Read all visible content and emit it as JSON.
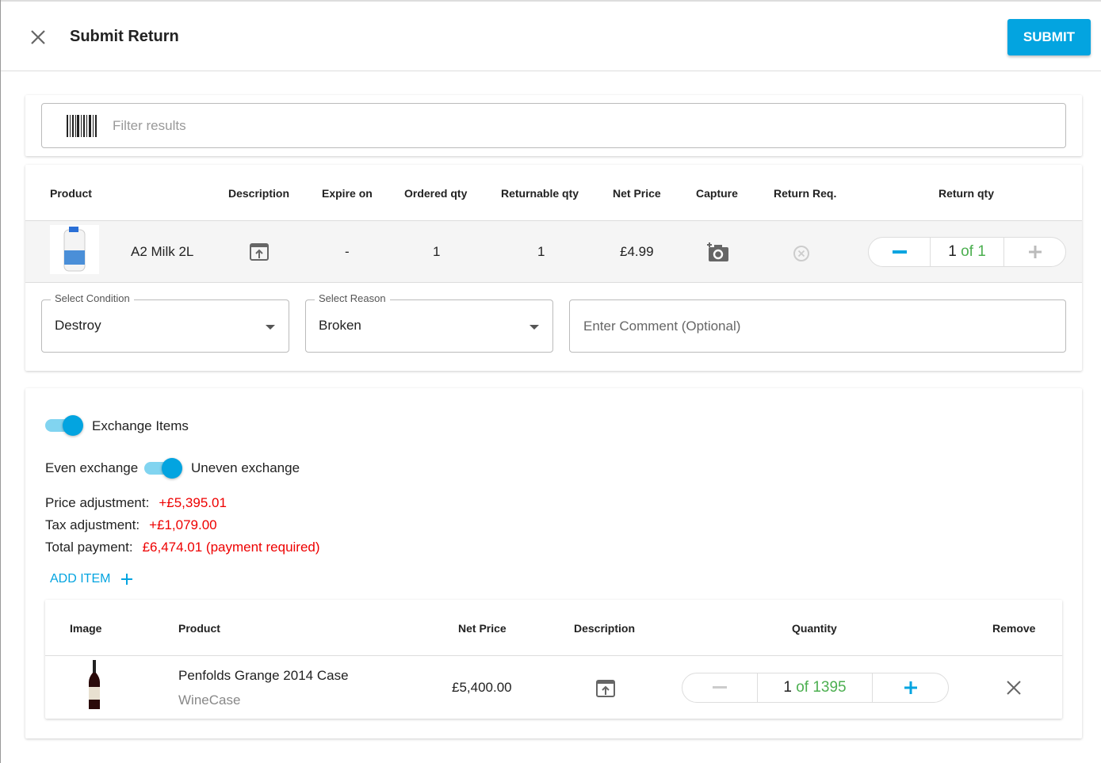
{
  "header": {
    "title": "Submit Return",
    "submit_label": "SUBMIT"
  },
  "filter": {
    "placeholder": "Filter results"
  },
  "return_table": {
    "columns": [
      "Product",
      "Description",
      "Expire on",
      "Ordered qty",
      "Returnable qty",
      "Net Price",
      "Capture",
      "Return Req.",
      "Return qty"
    ],
    "row": {
      "product": "A2 Milk 2L",
      "expire_on": "-",
      "ordered_qty": "1",
      "returnable_qty": "1",
      "net_price": "£4.99",
      "return_qty": "1",
      "return_qty_of": "of 1"
    }
  },
  "condition": {
    "label": "Select Condition",
    "value": "Destroy"
  },
  "reason": {
    "label": "Select Reason",
    "value": "Broken"
  },
  "comment": {
    "placeholder": "Enter Comment (Optional)"
  },
  "exchange": {
    "toggle_label": "Exchange Items",
    "toggle_on": true,
    "even_label": "Even exchange",
    "uneven_label": "Uneven exchange",
    "uneven_on": true,
    "price_label": "Price adjustment:",
    "price_value": "+£5,395.01",
    "tax_label": "Tax adjustment:",
    "tax_value": "+£1,079.00",
    "total_label": "Total payment:",
    "total_value": "£6,474.01 (payment required)",
    "add_item_label": "ADD ITEM"
  },
  "exchange_table": {
    "columns": [
      "Image",
      "Product",
      "Net Price",
      "Description",
      "Quantity",
      "Remove"
    ],
    "row": {
      "product": "Penfolds Grange 2014 Case",
      "category": "WineCase",
      "net_price": "£5,400.00",
      "qty": "1",
      "qty_of": "of 1395"
    }
  },
  "colors": {
    "accent": "#03a4e0",
    "red": "#e00000",
    "green": "#4caf50"
  }
}
